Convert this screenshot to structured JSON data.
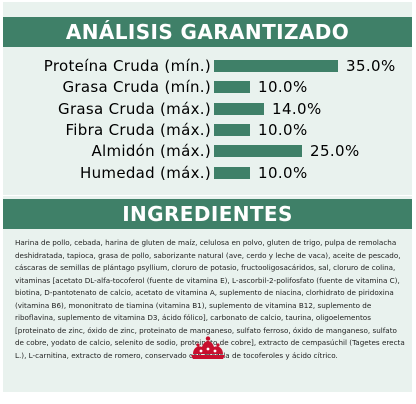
{
  "analysis": {
    "title": "ANÁLISIS GARANTIZADO",
    "rows": [
      {
        "label": "Proteína Cruda (mín.)",
        "value": "35.0%",
        "fraction": 1.0
      },
      {
        "label": "Grasa Cruda (mín.)",
        "value": "10.0%",
        "fraction": 0.29
      },
      {
        "label": "Grasa Cruda (máx.)",
        "value": "14.0%",
        "fraction": 0.4
      },
      {
        "label": "Fibra Cruda (máx.)",
        "value": "10.0%",
        "fraction": 0.29
      },
      {
        "label": "Almidón (máx.)",
        "value": "25.0%",
        "fraction": 0.71
      },
      {
        "label": "Humedad (máx.)",
        "value": "10.0%",
        "fraction": 0.29
      }
    ]
  },
  "ingredients": {
    "title": "INGREDIENTES",
    "text": "Harina de pollo, cebada, harina de gluten de maíz, celulosa en polvo, gluten de trigo, pulpa de remolacha deshidratada, tapioca, grasa de pollo, saborizante natural (ave, cerdo y leche de vaca), aceite de pescado, cáscaras de semillas de plántago psyllium, cloruro de potasio, fructooligosacáridos, sal, cloruro de colina, vitaminas [acetato DL-alfa-tocoferol (fuente de vitamina E), L-ascorbil-2-polifosfato (fuente de vitamina C), biotina, D-pantotenato de calcio, acetato de vitamina A, suplemento de niacina, clorhidrato de piridoxina (vitamina B6), mononitrato de tiamina (vitamina B1), suplemento de vitamina B12, suplemento de riboflavina, suplemento de vitamina D3, ácido fólico], carbonato de calcio, taurina, oligoelementos [proteinato de zinc, óxido de zinc, proteinato de manganeso, sulfato ferroso, óxido de manganeso, sulfato de cobre, yodato de calcio, selenito de sodio, proteinato de cobre], extracto de cempasúchil (Tagetes erecta L.), L-carnitina, extracto de romero, conservado con mezcla de tocoferoles y ácido cítrico."
  },
  "colors": {
    "accent": "#3f8068",
    "panel": "#e9f2ee",
    "logo": "#c8102e"
  },
  "icons": {
    "brand": "royal-crown-logo"
  }
}
